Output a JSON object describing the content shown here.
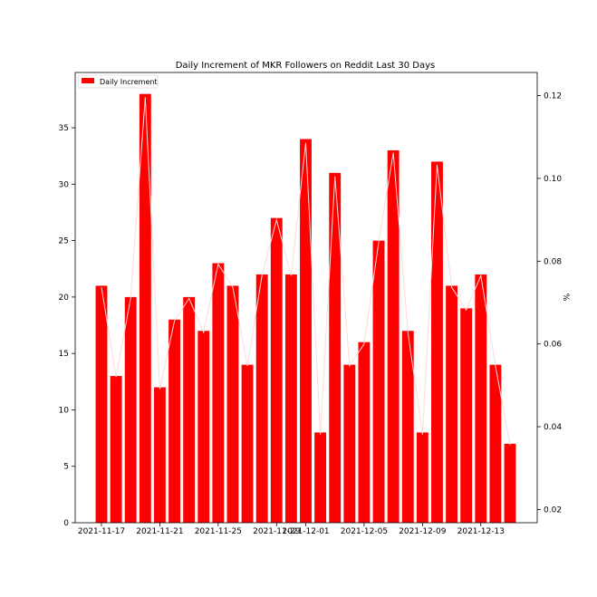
{
  "chart_data": {
    "type": "bar",
    "title": "Daily Increment of MKR Followers on Reddit Last 30 Days",
    "xlabel": "",
    "ylabel": "",
    "y2label": "%",
    "ylim": [
      0,
      39.9
    ],
    "y2lim": [
      0.0168,
      0.1256
    ],
    "yticks": [
      0,
      5,
      10,
      15,
      20,
      25,
      30,
      35
    ],
    "y2ticks": [
      0.02,
      0.04,
      0.06,
      0.08,
      0.1,
      0.12
    ],
    "y2tick_labels": [
      "0.02",
      "0.04",
      "0.06",
      "0.08",
      "0.10",
      "0.12"
    ],
    "legend_position": "top-left",
    "bar_color": "#ff0000",
    "line_color": "#ffd9d9",
    "dates": [
      "2021-11-17",
      "2021-11-18",
      "2021-11-19",
      "2021-11-20",
      "2021-11-21",
      "2021-11-22",
      "2021-11-23",
      "2021-11-24",
      "2021-11-25",
      "2021-11-26",
      "2021-11-27",
      "2021-11-28",
      "2021-11-29",
      "2021-11-30",
      "2021-12-01",
      "2021-12-02",
      "2021-12-03",
      "2021-12-04",
      "2021-12-05",
      "2021-12-06",
      "2021-12-07",
      "2021-12-08",
      "2021-12-09",
      "2021-12-10",
      "2021-12-11",
      "2021-12-12",
      "2021-12-13",
      "2021-12-14",
      "2021-12-15"
    ],
    "xtick_labels": [
      "2021-11-17",
      "2021-11-21",
      "2021-11-25",
      "2021-11-29",
      "2021-12-01",
      "2021-12-05",
      "2021-12-09",
      "2021-12-13"
    ],
    "series": [
      {
        "name": "Daily Increment",
        "values": [
          21,
          13,
          20,
          38,
          12,
          18,
          20,
          17,
          23,
          21,
          14,
          22,
          27,
          22,
          34,
          8,
          31,
          14,
          16,
          25,
          33,
          17,
          8,
          32,
          21,
          19,
          22,
          14,
          7
        ]
      }
    ],
    "percent_values": [
      0.0737,
      0.052,
      0.071,
      0.1196,
      0.0491,
      0.0655,
      0.071,
      0.0628,
      0.0793,
      0.0737,
      0.0547,
      0.0765,
      0.09,
      0.0765,
      0.1086,
      0.0381,
      0.1005,
      0.0547,
      0.06,
      0.0846,
      0.1062,
      0.0628,
      0.0381,
      0.1033,
      0.0737,
      0.0682,
      0.0765,
      0.0547,
      0.0356
    ]
  }
}
